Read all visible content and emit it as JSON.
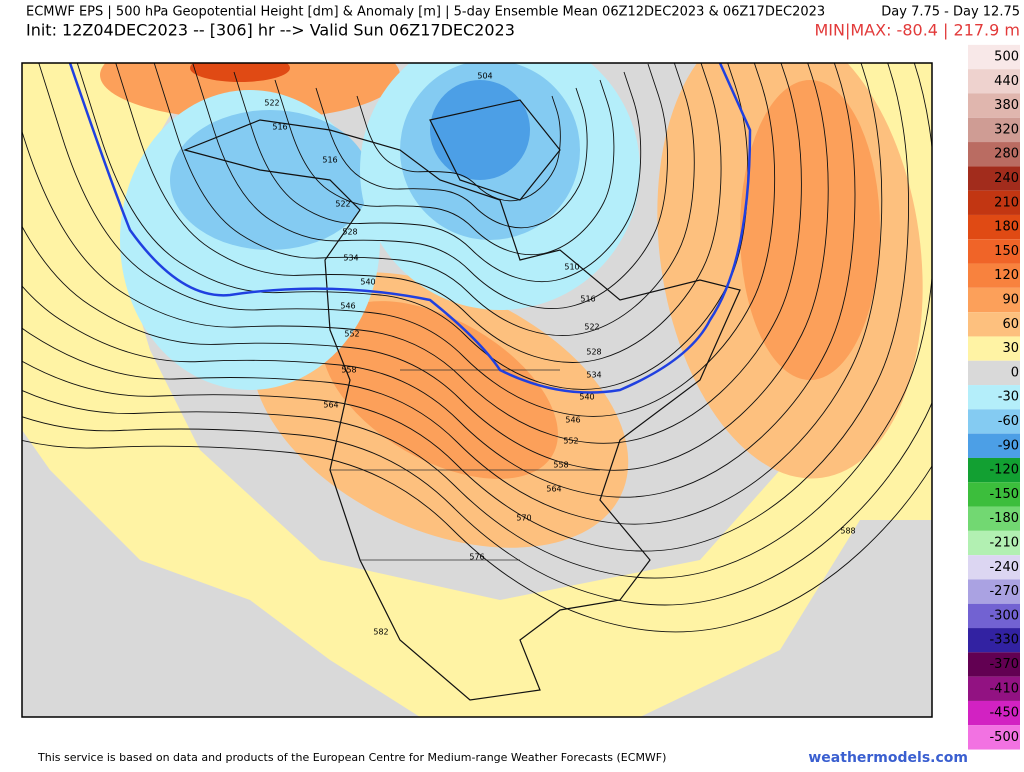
{
  "header": {
    "title": "ECMWF EPS | 500 hPa Geopotential Height [dm] & Anomaly [m] | 5-day Ensemble Mean 06Z12DEC2023 & 06Z17DEC2023",
    "day_range": "Day 7.75 - Day 12.75",
    "init": "Init: 12Z04DEC2023 -- [306] hr --> Valid Sun 06Z17DEC2023",
    "minmax": "MIN|MAX: -80.4 | 217.9 m"
  },
  "colorbar": {
    "labels": [
      500,
      440,
      380,
      320,
      280,
      240,
      210,
      180,
      150,
      120,
      90,
      60,
      30,
      0,
      -30,
      -60,
      -90,
      -120,
      -150,
      -180,
      -210,
      -240,
      -270,
      -300,
      -330,
      -370,
      -410,
      -450,
      -500
    ],
    "colors": [
      "#f8e8e8",
      "#eed2ce",
      "#e0b6ae",
      "#cf9c94",
      "#ba6c62",
      "#a22c1c",
      "#c23612",
      "#e04a14",
      "#f06428",
      "#f8823e",
      "#fca05a",
      "#fdc07e",
      "#fff3a4",
      "#d9d9d9",
      "#b4eefa",
      "#84cbf2",
      "#4c9fe6",
      "#12a032",
      "#3cbe3c",
      "#72d872",
      "#b2f0b2",
      "#dcd6f2",
      "#aaa2e2",
      "#7262d2",
      "#3222a2",
      "#620052",
      "#921282",
      "#d222c2",
      "#f272e2"
    ]
  },
  "contour_labels": [
    522,
    516,
    516,
    522,
    528,
    534,
    540,
    546,
    552,
    558,
    564,
    504,
    510,
    516,
    522,
    528,
    534,
    540,
    546,
    552,
    558,
    564,
    570,
    576,
    582,
    588
  ],
  "footer": {
    "credit": "This service is based on data and products of the European Centre for Medium-range Weather Forecasts (ECMWF)",
    "site": "weathermodels.com"
  }
}
